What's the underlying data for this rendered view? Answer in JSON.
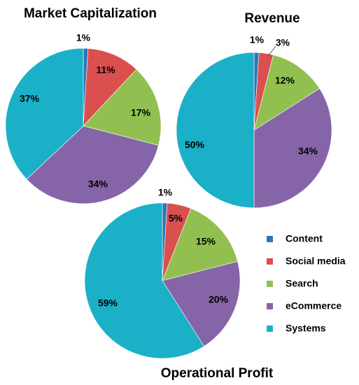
{
  "chart_data": [
    {
      "type": "pie",
      "title": "Market Capitalization",
      "categories": [
        "Content",
        "Social media",
        "Search",
        "eCommerce",
        "Systems"
      ],
      "values": [
        1,
        11,
        17,
        34,
        37
      ],
      "labels": [
        "1%",
        "11%",
        "17%",
        "34%",
        "37%"
      ],
      "colors": [
        "#2e75b6",
        "#d9504f",
        "#92c050",
        "#8565a8",
        "#1ab0c8"
      ]
    },
    {
      "type": "pie",
      "title": "Revenue",
      "categories": [
        "Content",
        "Social media",
        "Search",
        "eCommerce",
        "Systems"
      ],
      "values": [
        1,
        3,
        12,
        34,
        50
      ],
      "labels": [
        "1%",
        "3%",
        "12%",
        "34%",
        "50%"
      ],
      "colors": [
        "#2e75b6",
        "#d9504f",
        "#92c050",
        "#8565a8",
        "#1ab0c8"
      ]
    },
    {
      "type": "pie",
      "title": "Operational Profit",
      "categories": [
        "Content",
        "Social media",
        "Search",
        "eCommerce",
        "Systems"
      ],
      "values": [
        1,
        5,
        15,
        20,
        59
      ],
      "labels": [
        "1%",
        "5%",
        "15%",
        "20%",
        "59%"
      ],
      "colors": [
        "#2e75b6",
        "#d9504f",
        "#92c050",
        "#8565a8",
        "#1ab0c8"
      ]
    }
  ],
  "legend": {
    "placement": "right",
    "items": [
      {
        "label": "Content",
        "color": "#2e75b6"
      },
      {
        "label": "Social media",
        "color": "#d9504f"
      },
      {
        "label": "Search",
        "color": "#92c050"
      },
      {
        "label": "eCommerce",
        "color": "#8565a8"
      },
      {
        "label": "Systems",
        "color": "#1ab0c8"
      }
    ]
  }
}
